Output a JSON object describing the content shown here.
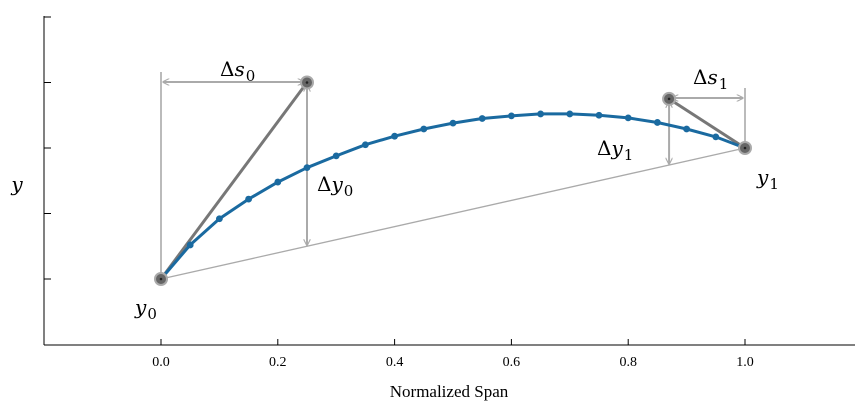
{
  "chart_data": {
    "type": "line",
    "xlabel": "Normalized Span",
    "ylabel": "y",
    "xlim": [
      -0.2,
      1.18
    ],
    "ylim": [
      -0.5,
      4.0
    ],
    "x_ticks": [
      0.0,
      0.2,
      0.4,
      0.6,
      0.8,
      1.0
    ],
    "x_tick_labels": [
      "0.0",
      "0.2",
      "0.4",
      "0.6",
      "0.8",
      "1.0"
    ],
    "y_ticks": [
      0,
      1,
      2,
      3,
      4
    ],
    "y_tick_labels": [],
    "grid": false,
    "colors": {
      "curve": "#1a6aa0",
      "control_polygon": "#777777",
      "dimension": "#aaaaaa",
      "chord": "#aaaaaa",
      "control_point_fill": "#666666",
      "control_point_edge": "#aaaaaa"
    },
    "series": [
      {
        "x": [
          0.0,
          0.05,
          0.1,
          0.15,
          0.2,
          0.25,
          0.3,
          0.35,
          0.4,
          0.45,
          0.5,
          0.55,
          0.6,
          0.65,
          0.7,
          0.75,
          0.8,
          0.85,
          0.9,
          0.95,
          1.0
        ],
        "y": [
          0.0,
          0.52,
          0.92,
          1.22,
          1.48,
          1.7,
          1.88,
          2.05,
          2.18,
          2.29,
          2.38,
          2.45,
          2.49,
          2.52,
          2.52,
          2.5,
          2.46,
          2.39,
          2.29,
          2.17,
          2.0
        ]
      }
    ],
    "control_points": [
      {
        "x": 0.0,
        "y": 0.0
      },
      {
        "x": 0.25,
        "y": 3.0
      },
      {
        "x": 0.87,
        "y": 2.75
      },
      {
        "x": 1.0,
        "y": 2.0
      }
    ],
    "annotations": {
      "y0": {
        "base": "y",
        "sub": "0"
      },
      "y1": {
        "base": "y",
        "sub": "1"
      },
      "ds0": {
        "base": "Δs",
        "sub": "0"
      },
      "ds1": {
        "base": "Δs",
        "sub": "1"
      },
      "dy0": {
        "base": "Δy",
        "sub": "0"
      },
      "dy1": {
        "base": "Δy",
        "sub": "1"
      }
    }
  }
}
